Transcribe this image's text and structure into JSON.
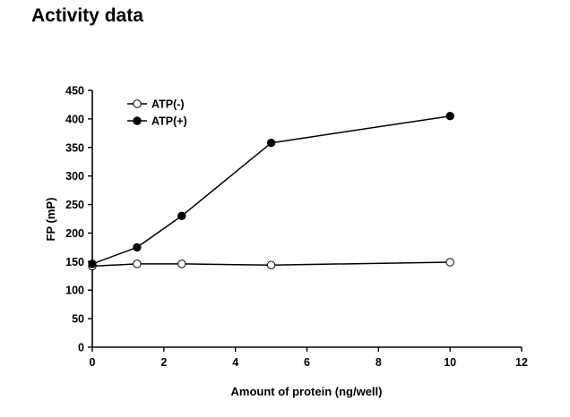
{
  "page": {
    "title": "Activity data"
  },
  "chart_data": {
    "type": "line",
    "title": "",
    "xlabel": "Amount of protein (ng/well)",
    "ylabel": "FP (mP)",
    "xlim": [
      0,
      12
    ],
    "ylim": [
      0,
      450
    ],
    "xticks": [
      0,
      2,
      4,
      6,
      8,
      10,
      12
    ],
    "yticks": [
      0,
      50,
      100,
      150,
      200,
      250,
      300,
      350,
      400,
      450
    ],
    "grid": false,
    "legend_position": "top-left",
    "series": [
      {
        "name": "ATP(-)",
        "marker": "open-circle",
        "x": [
          0,
          1.25,
          2.5,
          5,
          10
        ],
        "y": [
          142,
          146,
          146,
          144,
          149
        ]
      },
      {
        "name": "ATP(+)",
        "marker": "filled-circle",
        "x": [
          0,
          1.25,
          2.5,
          5,
          10
        ],
        "y": [
          146,
          175,
          230,
          358,
          405
        ]
      }
    ],
    "colors": {
      "line": "#000000",
      "open_fill": "#ffffff",
      "filled_fill": "#000000"
    }
  }
}
